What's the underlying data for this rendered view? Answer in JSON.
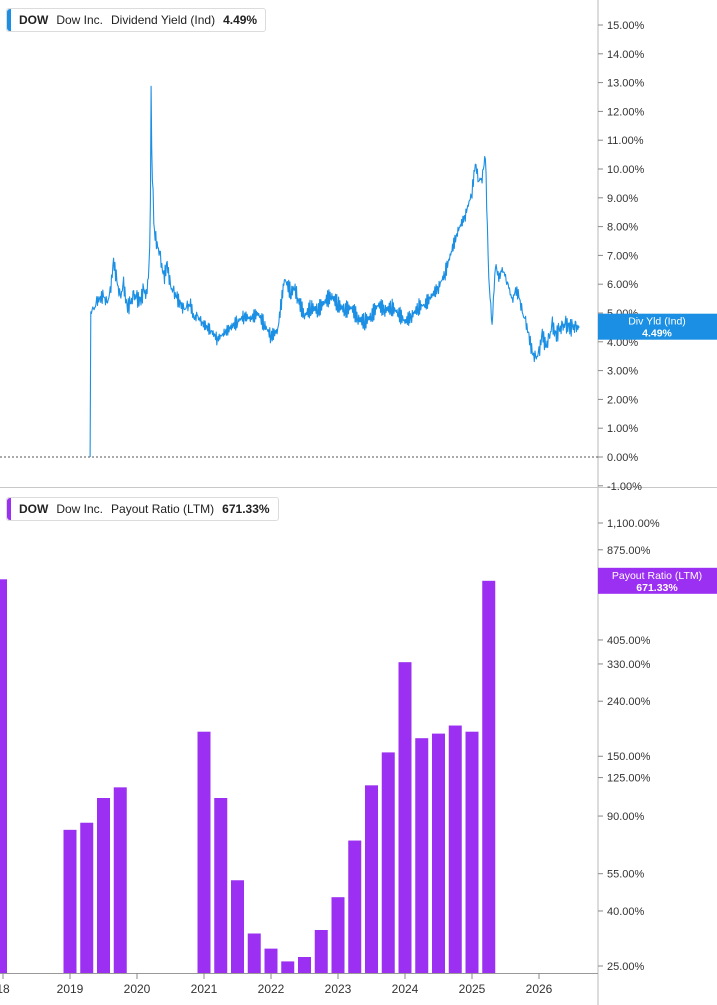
{
  "legend_top": {
    "symbol": "DOW",
    "company": "Dow Inc.",
    "metric": "Dividend Yield (Ind)",
    "value": "4.49%",
    "color": "#1a8fe3"
  },
  "legend_bottom": {
    "symbol": "DOW",
    "company": "Dow Inc.",
    "metric": "Payout Ratio (LTM)",
    "value": "671.33%",
    "color": "#9b30f2"
  },
  "badge_top": {
    "label": "Div Yld (Ind)",
    "value": "4.49%"
  },
  "badge_bottom": {
    "label": "Payout Ratio (LTM)",
    "value": "671.33%"
  },
  "x_axis": {
    "ticks": [
      {
        "label": "18",
        "year": 2018.0
      },
      {
        "label": "2019",
        "year": 2019.0
      },
      {
        "label": "2020",
        "year": 2020.0
      },
      {
        "label": "2021",
        "year": 2021.0
      },
      {
        "label": "2022",
        "year": 2022.0
      },
      {
        "label": "2023",
        "year": 2023.0
      },
      {
        "label": "2024",
        "year": 2024.0
      },
      {
        "label": "2025",
        "year": 2025.0
      },
      {
        "label": "2026",
        "year": 2026.0
      }
    ]
  },
  "chart_data": [
    {
      "type": "line",
      "title": "",
      "series": [
        {
          "name": "Dividend Yield (Ind)",
          "color": "#1a8fe3",
          "x": [
            2019.3,
            2019.31,
            2019.33,
            2019.36,
            2019.4,
            2019.45,
            2019.5,
            2019.55,
            2019.6,
            2019.65,
            2019.7,
            2019.75,
            2019.8,
            2019.85,
            2019.9,
            2019.95,
            2020.0,
            2020.05,
            2020.1,
            2020.14,
            2020.18,
            2020.2,
            2020.21,
            2020.22,
            2020.24,
            2020.26,
            2020.3,
            2020.35,
            2020.4,
            2020.45,
            2020.5,
            2020.55,
            2020.6,
            2020.65,
            2020.7,
            2020.75,
            2020.8,
            2020.85,
            2020.9,
            2020.95,
            2021.0,
            2021.1,
            2021.2,
            2021.3,
            2021.4,
            2021.5,
            2021.6,
            2021.7,
            2021.8,
            2021.9,
            2022.0,
            2022.1,
            2022.2,
            2022.3,
            2022.35,
            2022.4,
            2022.5,
            2022.6,
            2022.7,
            2022.8,
            2022.9,
            2023.0,
            2023.1,
            2023.2,
            2023.3,
            2023.4,
            2023.5,
            2023.6,
            2023.7,
            2023.8,
            2023.9,
            2024.0,
            2024.1,
            2024.2,
            2024.3,
            2024.4,
            2024.5,
            2024.6,
            2024.7,
            2024.8,
            2024.9,
            2025.0,
            2025.05,
            2025.1,
            2025.15,
            2025.2,
            2025.25,
            2025.3,
            2025.35,
            2025.4,
            2025.45,
            2025.5,
            2025.52,
            2025.55,
            2025.6,
            2025.65,
            2025.7,
            2025.75,
            2025.8,
            2025.85,
            2025.9,
            2025.95,
            2026.0,
            2026.05,
            2026.1,
            2026.15,
            2026.2,
            2026.25,
            2026.3,
            2026.35,
            2026.4,
            2026.45,
            2026.5,
            2026.55,
            2026.6
          ],
          "y": [
            0.0,
            5.0,
            5.2,
            5.1,
            5.4,
            5.5,
            5.6,
            5.3,
            5.7,
            6.8,
            6.1,
            5.5,
            6.0,
            5.2,
            5.3,
            5.6,
            5.5,
            5.4,
            5.8,
            5.6,
            6.5,
            8.7,
            12.8,
            10.5,
            9.0,
            7.8,
            7.4,
            6.9,
            6.2,
            6.7,
            5.9,
            5.7,
            5.5,
            5.3,
            5.1,
            5.2,
            5.3,
            4.8,
            4.9,
            4.7,
            4.6,
            4.4,
            4.1,
            4.3,
            4.5,
            4.7,
            4.9,
            4.8,
            5.0,
            4.6,
            4.2,
            4.4,
            6.2,
            5.7,
            5.9,
            5.5,
            4.9,
            5.2,
            5.1,
            5.4,
            5.6,
            5.3,
            5.1,
            5.2,
            4.8,
            4.7,
            4.9,
            5.3,
            5.1,
            5.2,
            5.0,
            4.7,
            4.9,
            5.2,
            5.3,
            5.6,
            5.9,
            6.4,
            7.2,
            7.9,
            8.4,
            9.2,
            10.2,
            9.6,
            9.7,
            10.5,
            6.2,
            4.6,
            6.7,
            6.2,
            6.5,
            6.3,
            6.1,
            5.9,
            5.4,
            5.8,
            5.6,
            5.0,
            4.7,
            4.2,
            3.6,
            3.4,
            3.6,
            4.3,
            3.8,
            4.1,
            4.6,
            4.2,
            4.4,
            4.5,
            4.6,
            4.5,
            4.49,
            4.49,
            4.49
          ],
          "ylim": [
            -1,
            15
          ],
          "ytick_labels": [
            "-1.00%",
            "0.00%",
            "1.00%",
            "2.00%",
            "3.00%",
            "4.00%",
            "5.00%",
            "6.00%",
            "7.00%",
            "8.00%",
            "9.00%",
            "10.00%",
            "11.00%",
            "12.00%",
            "13.00%",
            "14.00%",
            "15.00%"
          ]
        }
      ]
    },
    {
      "type": "bar",
      "title": "",
      "yscale": "log",
      "series": [
        {
          "name": "Payout Ratio (LTM)",
          "color": "#9b30f2",
          "x": [
            2018.0,
            2019.0,
            2019.25,
            2019.5,
            2019.75,
            2021.0,
            2021.25,
            2021.5,
            2021.75,
            2022.0,
            2022.25,
            2022.5,
            2022.75,
            2023.0,
            2023.25,
            2023.5,
            2023.75,
            2024.0,
            2024.25,
            2024.5,
            2024.75,
            2025.0,
            2025.25
          ],
          "values": [
            680,
            80,
            85,
            105,
            115,
            185,
            105,
            52,
            33,
            29,
            26,
            27,
            34,
            45,
            73,
            117,
            155,
            335,
            175,
            182,
            195,
            185,
            671.33
          ]
        }
      ],
      "ytick_labels": [
        "25.00%",
        "40.00%",
        "55.00%",
        "90.00%",
        "125.00%",
        "150.00%",
        "240.00%",
        "330.00%",
        "405.00%",
        "875.00%",
        "1,100.00%"
      ]
    }
  ]
}
